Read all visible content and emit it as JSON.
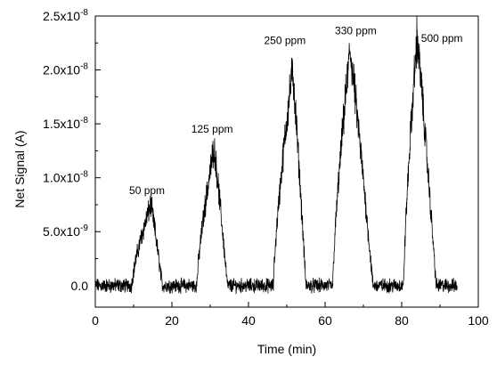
{
  "chart_data": {
    "type": "line",
    "title": "",
    "xlabel": "Time (min)",
    "ylabel": "Net Signal (A)",
    "xlim": [
      0,
      100
    ],
    "ylim": [
      -2e-09,
      2.5e-08
    ],
    "x_ticks": [
      {
        "value": 0,
        "label": "0"
      },
      {
        "value": 20,
        "label": "20"
      },
      {
        "value": 40,
        "label": "40"
      },
      {
        "value": 60,
        "label": "60"
      },
      {
        "value": 80,
        "label": "80"
      },
      {
        "value": 100,
        "label": "100"
      }
    ],
    "y_ticks": [
      {
        "value": 0,
        "mantissa": "0.0",
        "exponent": ""
      },
      {
        "value": 5e-09,
        "mantissa": "5.0x10",
        "exponent": "-9"
      },
      {
        "value": 1e-08,
        "mantissa": "1.0x10",
        "exponent": "-8"
      },
      {
        "value": 1.5e-08,
        "mantissa": "1.5x10",
        "exponent": "-8"
      },
      {
        "value": 2e-08,
        "mantissa": "2.0x10",
        "exponent": "-8"
      },
      {
        "value": 2.5e-08,
        "mantissa": "2.5x10",
        "exponent": "-8"
      }
    ],
    "grid": false,
    "line_color": "#000000",
    "pulses": [
      {
        "label": "50 ppm",
        "start": 9.5,
        "peak_time": 14.5,
        "peak": 7.5e-09,
        "end": 17.5
      },
      {
        "label": "125 ppm",
        "start": 26.5,
        "peak_time": 31,
        "peak": 1.28e-08,
        "end": 34.5
      },
      {
        "label": "250 ppm",
        "start": 46.5,
        "peak_time": 51.5,
        "peak": 2e-08,
        "end": 55
      },
      {
        "label": "330 ppm",
        "start": 62,
        "peak_time": 66.5,
        "peak": 2.18e-08,
        "end": 72.5
      },
      {
        "label": "500 ppm",
        "start": 80.5,
        "peak_time": 84,
        "peak": 2.3e-08,
        "end": 89
      }
    ],
    "annotations": [
      {
        "text": "50 ppm",
        "x": 13.5,
        "y": 8.5e-09
      },
      {
        "text": "125 ppm",
        "x": 30.5,
        "y": 1.42e-08
      },
      {
        "text": "250 ppm",
        "x": 49.5,
        "y": 2.24e-08
      },
      {
        "text": "330 ppm",
        "x": 68,
        "y": 2.33e-08
      },
      {
        "text": "500 ppm",
        "x": 90.5,
        "y": 2.26e-08
      }
    ]
  }
}
